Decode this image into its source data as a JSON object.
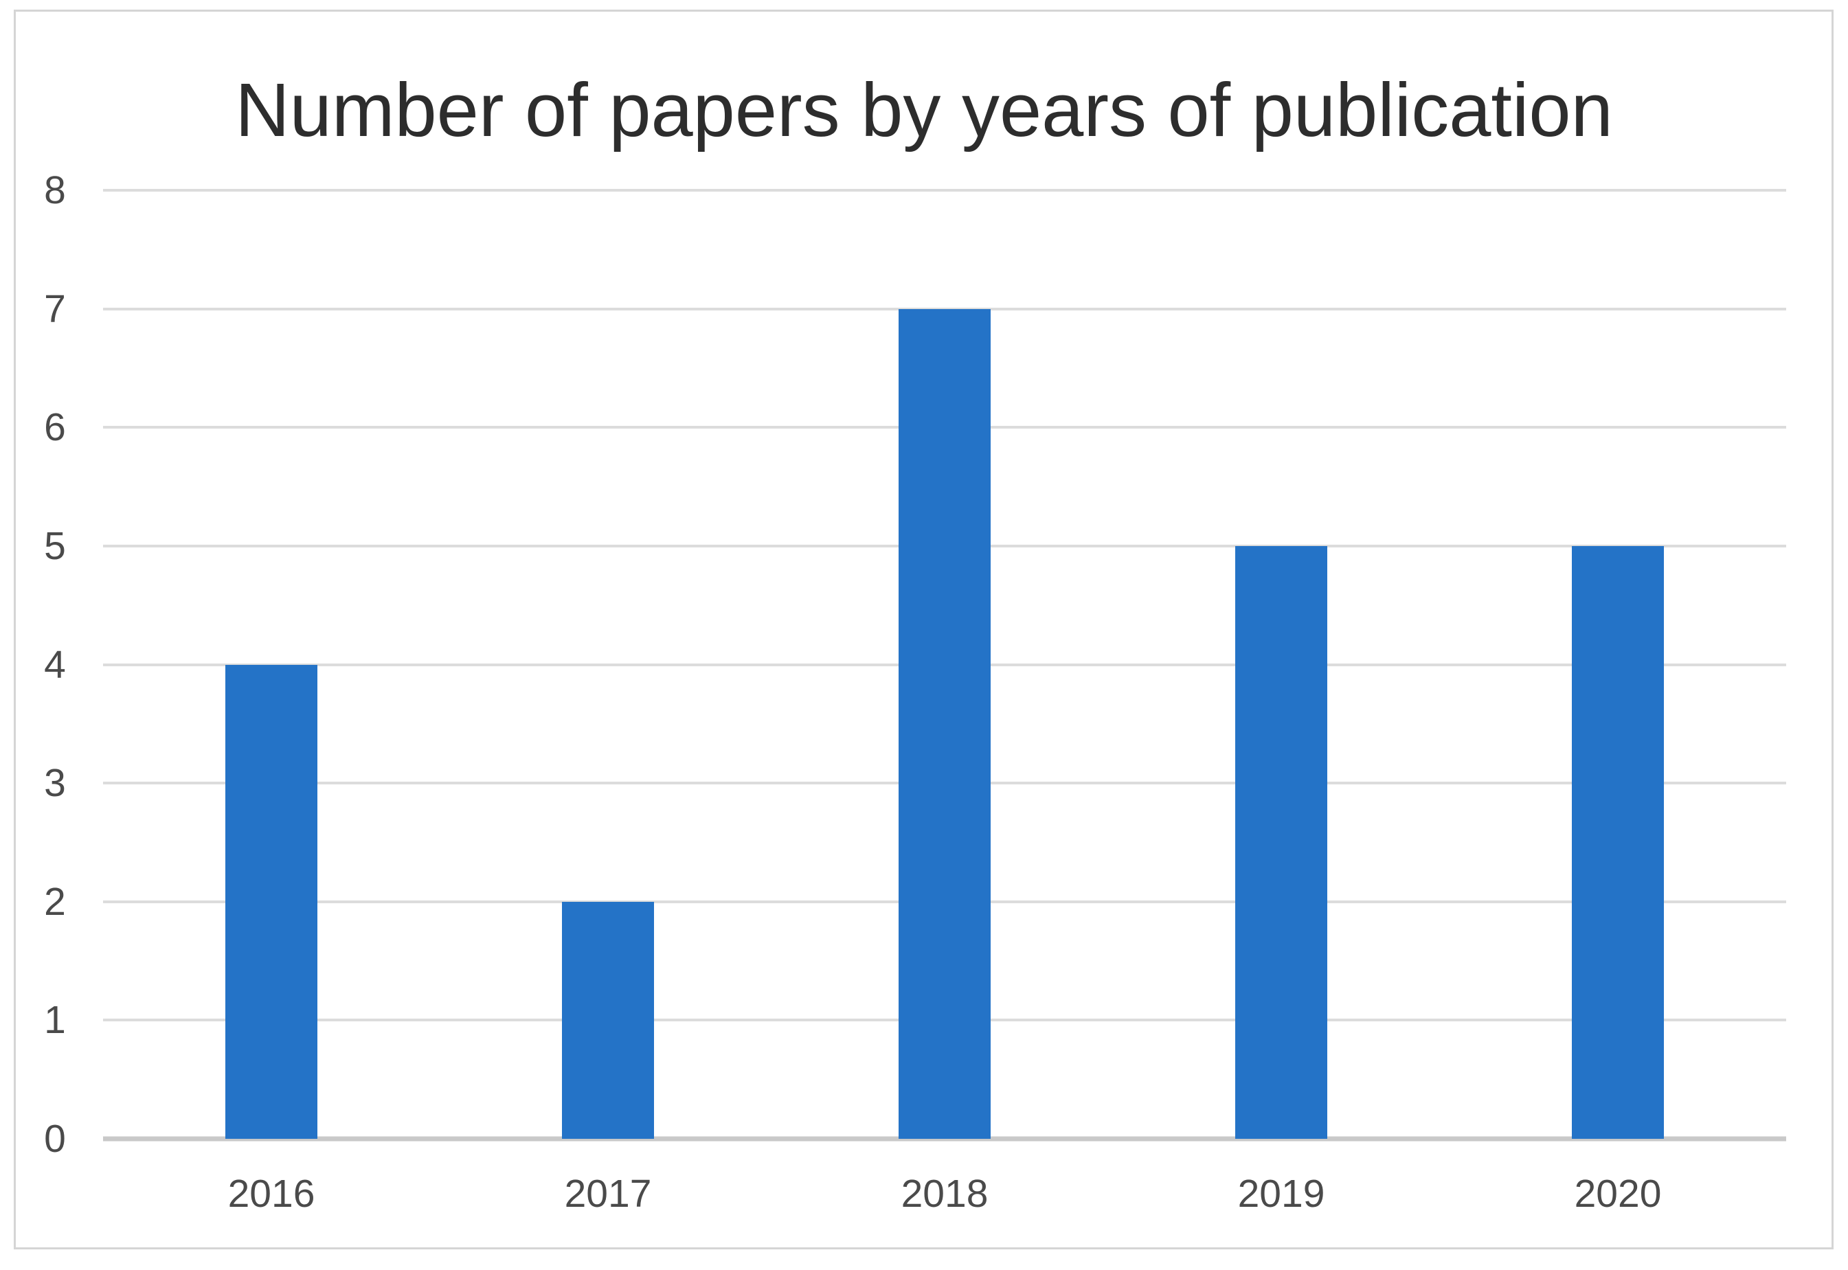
{
  "chart_data": {
    "type": "bar",
    "title": "Number of papers by years of publication",
    "categories": [
      "2016",
      "2017",
      "2018",
      "2019",
      "2020"
    ],
    "values": [
      4,
      2,
      7,
      5,
      5
    ],
    "xlabel": "",
    "ylabel": "",
    "ylim": [
      0,
      8
    ],
    "yticks": [
      0,
      1,
      2,
      3,
      4,
      5,
      6,
      7,
      8
    ],
    "grid": "horizontal-on",
    "legend_position": "none",
    "colors": {
      "bar": "#2473c7",
      "gridline": "#dcdcdc",
      "axis_line": "#c9c9c9",
      "tick_label": "#4a4a4a",
      "title": "#2d2d2d",
      "frame_border": "#d5d5d5",
      "background": "#ffffff"
    }
  }
}
